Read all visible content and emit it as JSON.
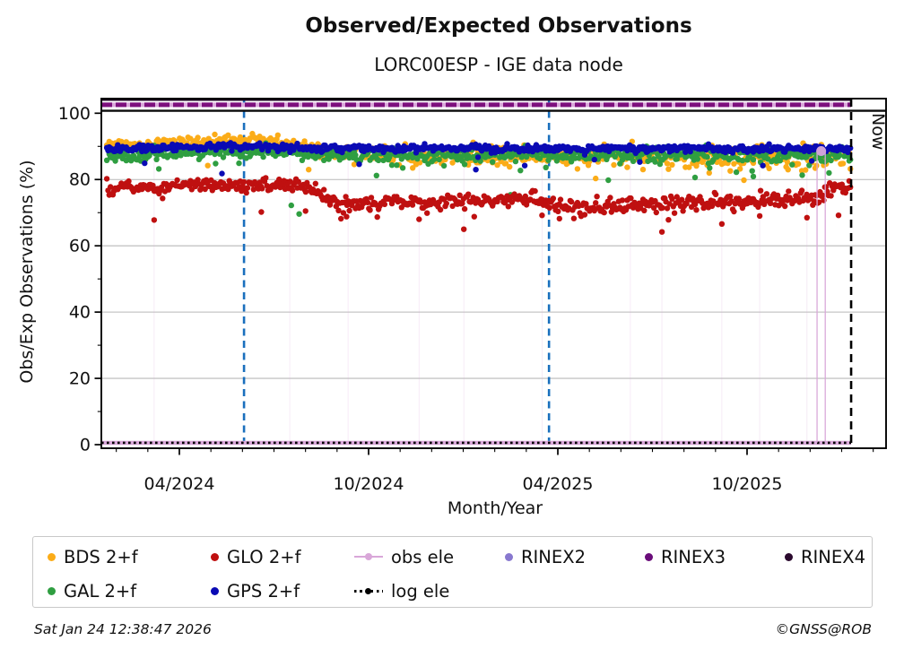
{
  "header": {
    "title": "Observed/Expected Observations",
    "subtitle": "LORC00ESP - IGE data node"
  },
  "footer": {
    "generated": "Sat Jan 24 12:38:47 2026",
    "credit": "©GNSS@ROB"
  },
  "chart_data": {
    "type": "scatter",
    "title": "Observed/Expected Observations",
    "subtitle": "LORC00ESP - IGE data node",
    "xlabel": "Month/Year",
    "ylabel": "Obs/Exp Observations (%)",
    "x_axis": {
      "unit": "months_since_2024-01-01",
      "visible_range_months": [
        0.53,
        25.41
      ],
      "major_ticks": [
        {
          "month": 3,
          "label": "04/2024"
        },
        {
          "month": 9,
          "label": "10/2024"
        },
        {
          "month": 15,
          "label": "04/2025"
        },
        {
          "month": 21,
          "label": "10/2025"
        }
      ],
      "minor_tick_months": [
        1,
        2,
        4,
        5,
        6,
        7,
        8,
        10,
        11,
        12,
        13,
        14,
        16,
        17,
        18,
        19,
        20,
        22,
        23,
        24,
        25
      ]
    },
    "y_axis": {
      "range": [
        0,
        104.7
      ],
      "major_ticks": [
        0,
        20,
        40,
        60,
        80,
        100
      ],
      "minor_ticks": [
        10,
        30,
        50,
        70,
        90
      ],
      "grid_values": [
        20,
        40,
        60,
        80
      ],
      "grid_color": "#b9b9b9"
    },
    "now": {
      "label": "Now",
      "month": 24.3,
      "color": "#000000"
    },
    "event_lines": {
      "color": "#1a6fbd",
      "months": [
        5.05,
        14.72
      ]
    },
    "reference_lines": [
      {
        "name": "RINEX3",
        "value": 102.55,
        "color": "#7d107d",
        "underlay_color": "#d9a7d9",
        "width": 5,
        "dash": "12 4",
        "end": "now"
      },
      {
        "name": "RINEX4",
        "value": 104.0,
        "color": "#1d0520",
        "width": 2,
        "end": "now"
      },
      {
        "name": "hundred-line",
        "value": 100.75,
        "color": "#0a0a0a",
        "width": 2.4,
        "end": "right"
      },
      {
        "name": "log ele",
        "value": 0.55,
        "color": "#000000",
        "width": 2.6,
        "dash": "2.6 3.4",
        "end": "now"
      }
    ],
    "obs_ele": {
      "name": "obs ele",
      "color": "#d9a7d9",
      "zero_band": {
        "value": 0.55,
        "width": 4.5,
        "end": "now"
      },
      "peak_point": {
        "month": 23.35,
        "value": 88.6,
        "radius": 5.5,
        "color": "#cfa3d8"
      },
      "drop_lines_strong": [
        23.22,
        23.48
      ],
      "drop_lines_faint": [
        2.2,
        6.5,
        8.35,
        10.6,
        12.02,
        14.5,
        17.3,
        18.3,
        20.2,
        21.4,
        22.9
      ]
    },
    "series": [
      {
        "name": "BDS 2+f",
        "color": "#fbac18",
        "seed": 101,
        "start_month": 0.7,
        "points_per_month": 26,
        "marker_radius": 3.2,
        "trend": [
          [
            0.7,
            90.3
          ],
          [
            3,
            90.9
          ],
          [
            4.3,
            92.0
          ],
          [
            5.6,
            92.2
          ],
          [
            6.5,
            90.6
          ],
          [
            7.6,
            88.6
          ],
          [
            8.6,
            87.3
          ],
          [
            12,
            87.3
          ],
          [
            15,
            87.1
          ],
          [
            18,
            87.3
          ],
          [
            21,
            86.9
          ],
          [
            23.2,
            87.2
          ],
          [
            24.3,
            87.8
          ]
        ],
        "sd": [
          [
            0.7,
            0.85
          ],
          [
            6.5,
            0.9
          ],
          [
            8.5,
            1.4
          ],
          [
            24.3,
            1.7
          ]
        ],
        "low_tail": {
          "prob": 0.05,
          "drop": 4
        },
        "outliers": [
          [
            3.9,
            84.2
          ],
          [
            7.1,
            83.0
          ],
          [
            10.4,
            83.5
          ],
          [
            16.2,
            80.3
          ],
          [
            19.8,
            82.0
          ],
          [
            20.9,
            79.8
          ],
          [
            22.3,
            83.0
          ]
        ]
      },
      {
        "name": "GAL 2+f",
        "color": "#2f9e41",
        "seed": 102,
        "start_month": 0.7,
        "points_per_month": 26,
        "marker_radius": 3.2,
        "trend": [
          [
            0.7,
            87.2
          ],
          [
            4.5,
            88.4
          ],
          [
            5.7,
            88.6
          ],
          [
            7.3,
            87.6
          ],
          [
            12,
            87.4
          ],
          [
            18,
            87.5
          ],
          [
            24.3,
            87.4
          ]
        ],
        "sd": [
          [
            0.7,
            0.95
          ],
          [
            24.3,
            1.1
          ]
        ],
        "low_tail": {
          "prob": 0.06,
          "drop": 4
        },
        "outliers": [
          [
            2.35,
            83.2
          ],
          [
            4.15,
            84.8
          ],
          [
            6.55,
            72.2
          ],
          [
            6.8,
            69.6
          ],
          [
            9.25,
            81.2
          ],
          [
            13.5,
            75.4
          ],
          [
            16.6,
            79.8
          ],
          [
            19.35,
            80.6
          ],
          [
            21.2,
            80.9
          ],
          [
            22.75,
            81.3
          ],
          [
            23.6,
            82.0
          ]
        ]
      },
      {
        "name": "GLO 2+f",
        "color": "#bf1010",
        "seed": 104,
        "start_month": 0.7,
        "points_per_month": 26,
        "marker_radius": 3.2,
        "trend": [
          [
            0.7,
            77.4
          ],
          [
            2.5,
            77.8
          ],
          [
            4.8,
            78.4
          ],
          [
            6.3,
            78.0
          ],
          [
            7.2,
            77.4
          ],
          [
            7.5,
            75.5
          ],
          [
            7.9,
            73.0
          ],
          [
            8.6,
            72.6
          ],
          [
            9.6,
            73.4
          ],
          [
            10.8,
            72.9
          ],
          [
            12.4,
            73.6
          ],
          [
            13.8,
            74.3
          ],
          [
            14.6,
            73.0
          ],
          [
            15.2,
            71.7
          ],
          [
            16.5,
            72.2
          ],
          [
            18.5,
            72.7
          ],
          [
            20.5,
            73.2
          ],
          [
            22.3,
            73.9
          ],
          [
            23.3,
            74.3
          ],
          [
            23.7,
            77.0
          ],
          [
            24.3,
            77.4
          ]
        ],
        "sd": [
          [
            0.7,
            1.05
          ],
          [
            24.3,
            1.15
          ]
        ],
        "low_tail": {
          "prob": 0.04,
          "drop": 5
        },
        "outliers": [
          [
            2.2,
            67.8
          ],
          [
            5.6,
            70.2
          ],
          [
            7.0,
            70.5
          ],
          [
            8.3,
            68.8
          ],
          [
            10.6,
            68.0
          ],
          [
            12.02,
            65.0
          ],
          [
            12.35,
            68.8
          ],
          [
            14.5,
            69.2
          ],
          [
            15.05,
            68.2
          ],
          [
            18.3,
            64.2
          ],
          [
            20.2,
            66.6
          ],
          [
            21.4,
            69.0
          ],
          [
            22.9,
            68.5
          ],
          [
            23.9,
            69.2
          ]
        ]
      },
      {
        "name": "GPS 2+f",
        "color": "#0a0ab4",
        "seed": 103,
        "start_month": 0.7,
        "points_per_month": 26,
        "marker_radius": 3.2,
        "trend": [
          [
            0.7,
            89.2
          ],
          [
            4.5,
            89.9
          ],
          [
            5.6,
            90.1
          ],
          [
            7.2,
            89.4
          ],
          [
            24.3,
            89.4
          ]
        ],
        "sd": [
          [
            0.7,
            0.5
          ],
          [
            24.3,
            0.55
          ]
        ],
        "low_tail": {
          "prob": 0.012,
          "drop": 3.5
        },
        "outliers": [
          [
            1.9,
            84.9
          ],
          [
            4.35,
            81.8
          ],
          [
            8.7,
            84.6
          ],
          [
            12.4,
            83.0
          ],
          [
            13.95,
            84.2
          ],
          [
            17.6,
            85.3
          ],
          [
            21.5,
            84.2
          ],
          [
            23.05,
            85.6
          ]
        ]
      }
    ]
  },
  "legend": {
    "rows": [
      [
        {
          "label": "BDS 2+f",
          "color": "#fbac18",
          "marker": "dot"
        },
        {
          "label": "GLO 2+f",
          "color": "#bf1010",
          "marker": "dot"
        },
        {
          "label": "obs ele",
          "color": "#d9a7d9",
          "marker": "linedot"
        },
        {
          "label": "RINEX2",
          "color": "#8878cf",
          "marker": "dot"
        },
        {
          "label": "RINEX3",
          "color": "#6a0d7a",
          "marker": "dot"
        },
        {
          "label": "RINEX4",
          "color": "#2b0a2e",
          "marker": "dot"
        }
      ],
      [
        {
          "label": "GAL 2+f",
          "color": "#2f9e41",
          "marker": "dot"
        },
        {
          "label": "GPS 2+f",
          "color": "#0a0ab4",
          "marker": "dot"
        },
        {
          "label": "log ele",
          "color": "#000000",
          "marker": "dotline"
        }
      ]
    ]
  }
}
